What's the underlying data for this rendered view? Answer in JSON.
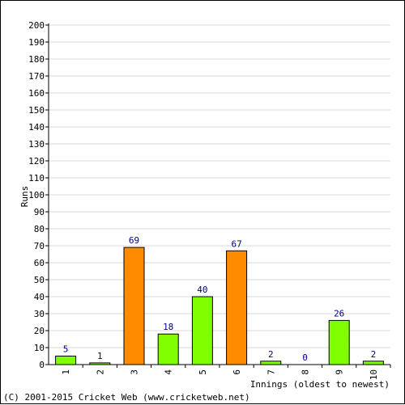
{
  "chart_data": {
    "type": "bar",
    "categories": [
      "1",
      "2",
      "3",
      "4",
      "5",
      "6",
      "7",
      "8",
      "9",
      "10"
    ],
    "values": [
      5,
      1,
      69,
      18,
      40,
      67,
      2,
      0,
      26,
      2
    ],
    "bar_colors": [
      "#80ff00",
      "#80ff00",
      "#ff8c00",
      "#80ff00",
      "#80ff00",
      "#ff8c00",
      "#80ff00",
      "#80ff00",
      "#80ff00",
      "#80ff00"
    ],
    "xlabel": "Innings (oldest to newest)",
    "ylabel": "Runs",
    "ylim": [
      0,
      200
    ],
    "ytick_step": 10,
    "grid": true
  },
  "colors": {
    "series_green": "#80ff00",
    "series_orange": "#ff8c00",
    "value_label": "#000080",
    "grid": "#d9d9d9"
  },
  "footer": "(C) 2001-2015 Cricket Web (www.cricketweb.net)"
}
